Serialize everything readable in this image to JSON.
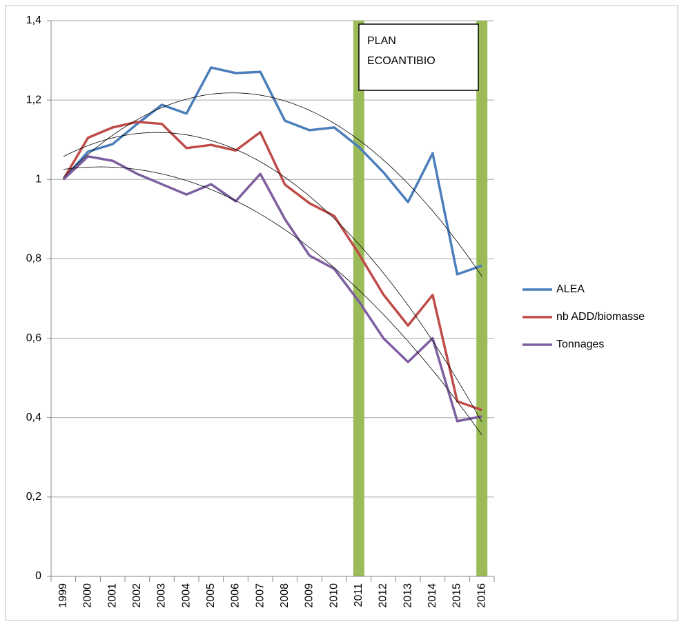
{
  "chart_data": {
    "type": "line",
    "categories": [
      "1999",
      "2000",
      "2001",
      "2002",
      "2003",
      "2004",
      "2005",
      "2006",
      "2007",
      "2008",
      "2009",
      "2010",
      "2011",
      "2012",
      "2013",
      "2014",
      "2015",
      "2016"
    ],
    "series": [
      {
        "name": "ALEA",
        "color": "#4a7ebb",
        "values": [
          1.0,
          1.07,
          1.089,
          1.14,
          1.188,
          1.166,
          1.282,
          1.268,
          1.271,
          1.148,
          1.124,
          1.131,
          1.082,
          1.018,
          0.943,
          1.066,
          0.761,
          0.783
        ]
      },
      {
        "name": "nb ADD/biomasse",
        "color": "#be4b48",
        "values": [
          1.0,
          1.105,
          1.131,
          1.145,
          1.14,
          1.079,
          1.087,
          1.073,
          1.119,
          0.987,
          0.94,
          0.908,
          0.813,
          0.71,
          0.632,
          0.709,
          0.441,
          0.419
        ]
      },
      {
        "name": "Tonnages",
        "color": "#7d5fa0",
        "values": [
          1.0,
          1.058,
          1.047,
          1.014,
          0.988,
          0.962,
          0.988,
          0.945,
          1.014,
          0.9,
          0.808,
          0.775,
          0.693,
          0.6,
          0.54,
          0.6,
          0.391,
          0.403
        ]
      }
    ],
    "ylim": [
      0,
      1.4
    ],
    "yticks": [
      0,
      {
        "value": 0.2,
        "label": "0,2"
      },
      {
        "value": 0.4,
        "label": "0,4"
      },
      {
        "value": 0.6,
        "label": "0,6"
      },
      {
        "value": 0.8,
        "label": "0,8"
      },
      1,
      {
        "value": 1.2,
        "label": "1,2"
      },
      {
        "value": 1.4,
        "label": "1,4"
      }
    ],
    "grid": true,
    "legend": "right",
    "trendline": {
      "order": 2,
      "color": "#000000"
    },
    "highlights": {
      "categories": [
        "2011",
        "2016"
      ],
      "color": "#9bbb59"
    },
    "annotation": [
      "PLAN",
      "ECOANTIBIO"
    ]
  }
}
